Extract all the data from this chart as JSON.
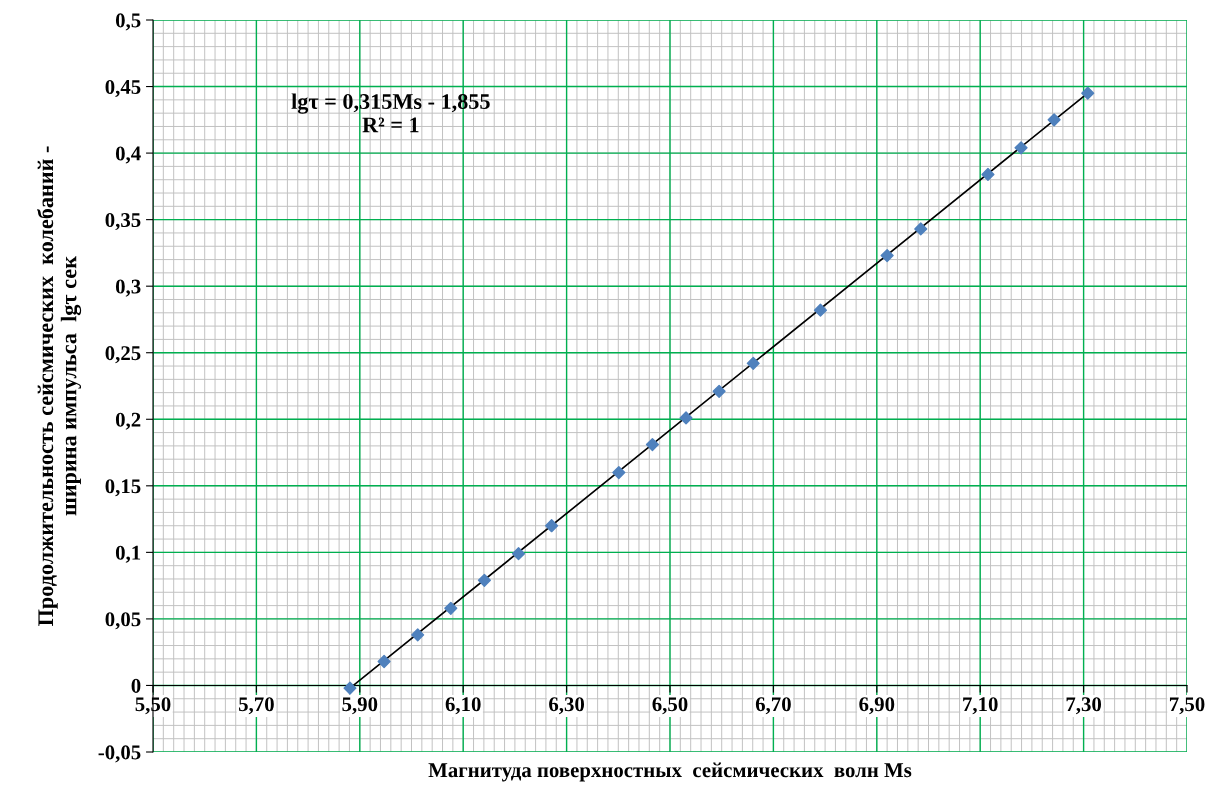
{
  "chart_data": {
    "type": "scatter",
    "xlabel": "Магнитуда поверхностных  сейсмических  волн Ms",
    "ylabel": "Продолжительность сейсмических  колебаний -\nширина импульса  lgτ сек",
    "annotations": [
      "lgτ = 0,315Ms - 1,855\nR² = 1"
    ],
    "series": [
      {
        "type": "scatter",
        "color": "#4f81bd",
        "marker": "diamond",
        "x": [
          5.881,
          5.947,
          6.012,
          6.076,
          6.141,
          6.207,
          6.271,
          6.401,
          6.466,
          6.531,
          6.595,
          6.661,
          6.791,
          6.92,
          6.985,
          7.115,
          7.179,
          7.243,
          7.308
        ],
        "values": [
          -0.002,
          0.018,
          0.038,
          0.058,
          0.079,
          0.099,
          0.12,
          0.16,
          0.181,
          0.201,
          0.221,
          0.242,
          0.282,
          0.323,
          0.343,
          0.384,
          0.404,
          0.425,
          0.445
        ]
      },
      {
        "type": "line",
        "color": "#000000",
        "marker": "none",
        "line_style": "solid",
        "x": [
          5.881,
          7.308
        ],
        "values": [
          -0.002,
          0.445
        ]
      }
    ],
    "xlim": [
      5.5,
      7.5
    ],
    "xticks": [
      {
        "value": 5.5,
        "label": "5,50"
      },
      {
        "value": 5.7,
        "label": "5,70"
      },
      {
        "value": 5.9,
        "label": "5,90"
      },
      {
        "value": 6.1,
        "label": "6,10"
      },
      {
        "value": 6.3,
        "label": "6,30"
      },
      {
        "value": 6.5,
        "label": "6,50"
      },
      {
        "value": 6.7,
        "label": "6,70"
      },
      {
        "value": 6.9,
        "label": "6,90"
      },
      {
        "value": 7.1,
        "label": "7,10"
      },
      {
        "value": 7.3,
        "label": "7,30"
      },
      {
        "value": 7.5,
        "label": "7,50"
      }
    ],
    "ylim": [
      -0.05,
      0.5
    ],
    "yticks": [
      {
        "value": -0.05,
        "label": "-0,05"
      },
      0,
      {
        "value": 0.05,
        "label": "0,05"
      },
      {
        "value": 0.1,
        "label": "0,1"
      },
      {
        "value": 0.15,
        "label": "0,15"
      },
      {
        "value": 0.2,
        "label": "0,2"
      },
      {
        "value": 0.25,
        "label": "0,25"
      },
      {
        "value": 0.3,
        "label": "0,3"
      },
      {
        "value": 0.35,
        "label": "0,35"
      },
      {
        "value": 0.4,
        "label": "0,4"
      },
      {
        "value": 0.45,
        "label": "0,45"
      },
      {
        "value": 0.5,
        "label": "0,5"
      }
    ],
    "grid": true,
    "legend": false
  }
}
